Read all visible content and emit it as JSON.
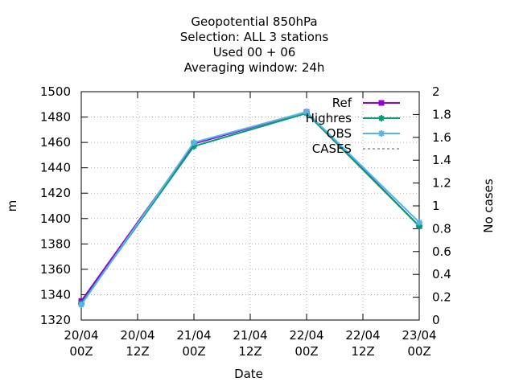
{
  "chart_data": {
    "type": "line",
    "title_lines": [
      "Geopotential 850hPa",
      "Selection: ALL      3 stations",
      "Used  00 + 06",
      "Averaging window: 24h"
    ],
    "xlabel": "Date",
    "ylabel": "m",
    "y2label": "No cases",
    "x_ticks": [
      {
        "day": "20/04",
        "hour": "00Z"
      },
      {
        "day": "20/04",
        "hour": "12Z"
      },
      {
        "day": "21/04",
        "hour": "00Z"
      },
      {
        "day": "21/04",
        "hour": "12Z"
      },
      {
        "day": "22/04",
        "hour": "00Z"
      },
      {
        "day": "22/04",
        "hour": "12Z"
      },
      {
        "day": "23/04",
        "hour": "00Z"
      }
    ],
    "ylim": [
      1320,
      1500
    ],
    "y_ticks": [
      1320,
      1340,
      1360,
      1380,
      1400,
      1420,
      1440,
      1460,
      1480,
      1500
    ],
    "y2lim": [
      0,
      2
    ],
    "y2_ticks": [
      "0",
      "0.2",
      "0.4",
      "0.6",
      "0.8",
      "1",
      "1.2",
      "1.4",
      "1.6",
      "1.8",
      "2"
    ],
    "grid": true,
    "legend_position": "top-right",
    "x_indices": [
      0,
      2,
      4,
      6
    ],
    "series": [
      {
        "name": "Ref",
        "color": "#9400d3",
        "values": [
          1335,
          1459,
          1484,
          1394
        ],
        "marker": "square"
      },
      {
        "name": "Highres",
        "color": "#009e73",
        "values": [
          1333,
          1457,
          1483,
          1394
        ],
        "marker": "star"
      },
      {
        "name": "OBS",
        "color": "#56b4e9",
        "values": [
          1332,
          1460,
          1484,
          1397
        ],
        "marker": "star"
      },
      {
        "name": "CASES",
        "color": "#555555",
        "values": [],
        "dashed": true
      }
    ]
  }
}
